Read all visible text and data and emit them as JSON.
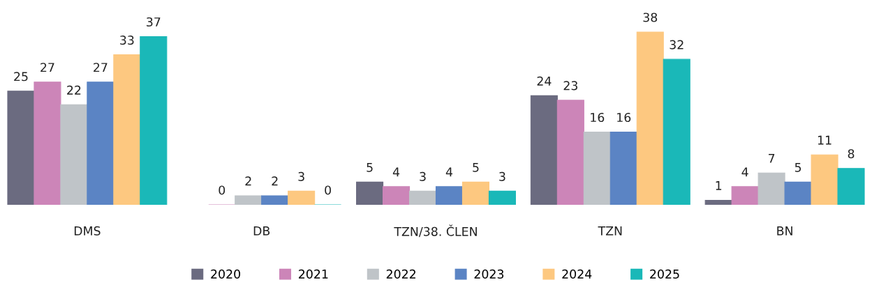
{
  "chart_data": {
    "type": "bar",
    "categories": [
      "DMS",
      "DB",
      "TZN/38. ČLEN",
      "TZN",
      "BN"
    ],
    "series": [
      {
        "name": "2020",
        "color": "#6b6b80",
        "values": [
          25,
          null,
          5,
          24,
          1
        ]
      },
      {
        "name": "2021",
        "color": "#cc85b8",
        "values": [
          27,
          0,
          4,
          23,
          4
        ]
      },
      {
        "name": "2022",
        "color": "#bfc4c8",
        "values": [
          22,
          2,
          3,
          16,
          7
        ]
      },
      {
        "name": "2023",
        "color": "#5b84c4",
        "values": [
          27,
          2,
          4,
          16,
          5
        ]
      },
      {
        "name": "2024",
        "color": "#fdc880",
        "values": [
          33,
          3,
          5,
          38,
          11
        ]
      },
      {
        "name": "2025",
        "color": "#1ab8b8",
        "values": [
          37,
          0,
          3,
          32,
          8
        ]
      }
    ],
    "data_labels": true,
    "legend": "bottom",
    "grid": false
  }
}
